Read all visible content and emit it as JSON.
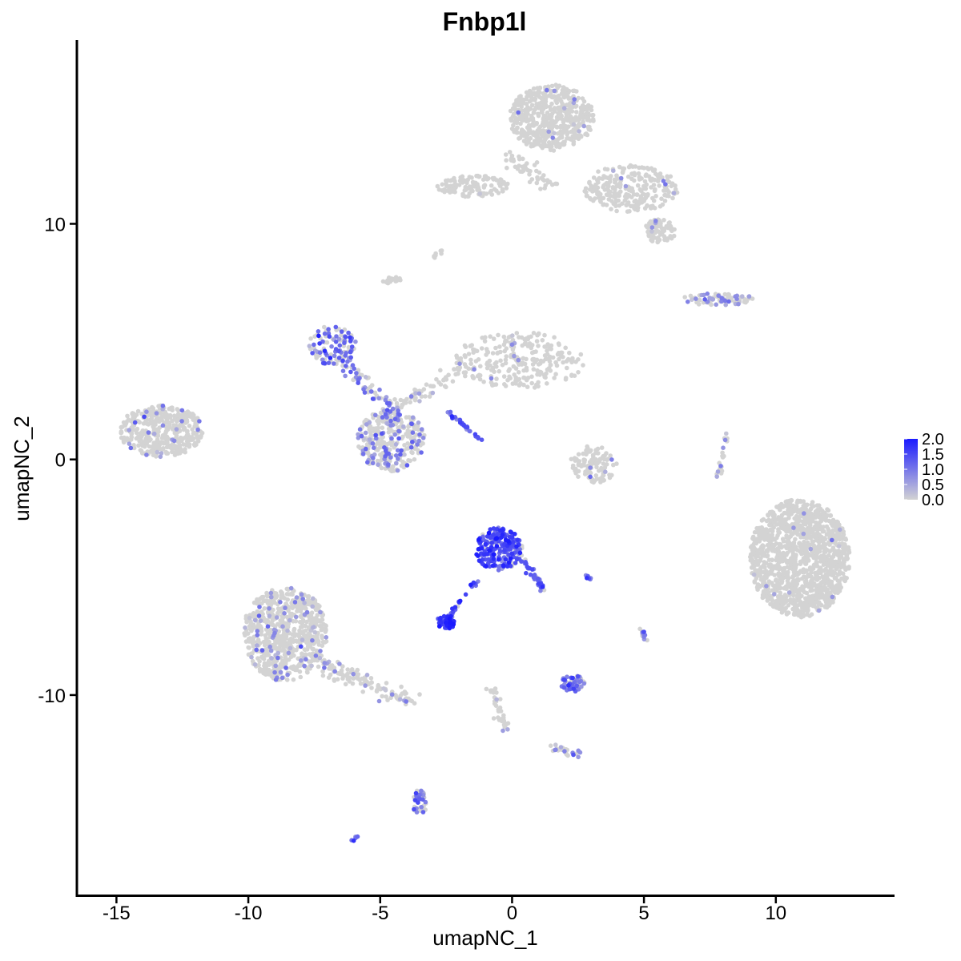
{
  "chart_data": {
    "type": "scatter",
    "title": "Fnbp1l",
    "xlabel": "umapNC_1",
    "ylabel": "umapNC_2",
    "xlim": [
      -16.5,
      14.5
    ],
    "ylim": [
      -18.5,
      17.8
    ],
    "x_ticks": [
      -15,
      -10,
      -5,
      0,
      5,
      10
    ],
    "y_ticks": [
      -10,
      0,
      10
    ],
    "x_tick_labels": [
      "-15",
      "-10",
      "-5",
      "0",
      "5",
      "10"
    ],
    "y_tick_labels": [
      "-10",
      "0",
      "10"
    ],
    "color_scale": {
      "low": "#d3d3d3",
      "high": "#1a1aff",
      "min": 0.0,
      "max": 2.0,
      "breaks": [
        2.0,
        1.5,
        1.0,
        0.5,
        0.0
      ],
      "break_labels": [
        "2.0",
        "1.5",
        "1.0",
        "0.5",
        "0.0"
      ]
    },
    "legend_position": "right",
    "grid": false,
    "clusters": [
      {
        "name": "top-right-cloud",
        "cx": 1.5,
        "cy": 14.5,
        "rx": 1.6,
        "ry": 1.4,
        "n": 520,
        "expr_frac": 0.02,
        "expr_mean": 0.6
      },
      {
        "name": "top-right-tail",
        "cx": 4.5,
        "cy": 11.5,
        "rx": 1.8,
        "ry": 1.0,
        "n": 260,
        "expr_frac": 0.02,
        "expr_mean": 0.6
      },
      {
        "name": "top-right-lobe",
        "cx": 5.6,
        "cy": 9.7,
        "rx": 0.6,
        "ry": 0.5,
        "n": 80,
        "expr_frac": 0.03,
        "expr_mean": 0.6
      },
      {
        "name": "top-left-strand",
        "cx": -1.5,
        "cy": 11.6,
        "rx": 1.4,
        "ry": 0.45,
        "n": 120,
        "expr_frac": 0.02,
        "expr_mean": 0.5
      },
      {
        "name": "left-cluster",
        "cx": -13.3,
        "cy": 1.2,
        "rx": 1.6,
        "ry": 1.1,
        "n": 400,
        "expr_frac": 0.06,
        "expr_mean": 0.7
      },
      {
        "name": "central-blob",
        "cx": -4.6,
        "cy": 0.8,
        "rx": 1.3,
        "ry": 1.3,
        "n": 330,
        "expr_frac": 0.28,
        "expr_mean": 0.8
      },
      {
        "name": "upper-left-arm",
        "cx": -6.8,
        "cy": 4.8,
        "rx": 0.9,
        "ry": 0.9,
        "n": 110,
        "expr_frac": 0.55,
        "expr_mean": 1.0
      },
      {
        "name": "upper-mid-cloud",
        "cx": 0.3,
        "cy": 4.2,
        "rx": 2.5,
        "ry": 1.2,
        "n": 260,
        "expr_frac": 0.04,
        "expr_mean": 0.6
      },
      {
        "name": "right-arc",
        "cx": 7.8,
        "cy": 6.8,
        "rx": 1.4,
        "ry": 0.25,
        "n": 80,
        "expr_frac": 0.35,
        "expr_mean": 0.8
      },
      {
        "name": "mid-crescent",
        "cx": 3.1,
        "cy": -0.2,
        "rx": 0.9,
        "ry": 0.8,
        "n": 100,
        "expr_frac": 0.04,
        "expr_mean": 0.6
      },
      {
        "name": "big-right-cluster",
        "cx": 10.9,
        "cy": -4.2,
        "rx": 1.9,
        "ry": 2.5,
        "n": 1300,
        "expr_frac": 0.01,
        "expr_mean": 0.6
      },
      {
        "name": "center-hot-cluster",
        "cx": -0.5,
        "cy": -3.8,
        "rx": 0.9,
        "ry": 0.9,
        "n": 210,
        "expr_frac": 0.9,
        "expr_mean": 1.4
      },
      {
        "name": "hot-small-cluster",
        "cx": -2.5,
        "cy": -6.9,
        "rx": 0.35,
        "ry": 0.3,
        "n": 55,
        "expr_frac": 0.95,
        "expr_mean": 1.5
      },
      {
        "name": "bottom-left-cluster",
        "cx": -8.6,
        "cy": -7.4,
        "rx": 1.6,
        "ry": 2.0,
        "n": 700,
        "expr_frac": 0.1,
        "expr_mean": 0.7
      },
      {
        "name": "bottom-right-small",
        "cx": 2.3,
        "cy": -9.5,
        "rx": 0.45,
        "ry": 0.35,
        "n": 60,
        "expr_frac": 0.6,
        "expr_mean": 1.0
      },
      {
        "name": "bottom-strand",
        "cx": -3.5,
        "cy": -14.6,
        "rx": 0.25,
        "ry": 0.6,
        "n": 40,
        "expr_frac": 0.5,
        "expr_mean": 0.9
      }
    ],
    "strands": [
      {
        "name": "blob-to-arm",
        "from": [
          -6.4,
          4.0
        ],
        "to": [
          -4.2,
          1.8
        ],
        "n": 60,
        "width": 0.3,
        "expr_frac": 0.55,
        "expr_mean": 1.0
      },
      {
        "name": "arm-to-mid",
        "from": [
          -4.4,
          2.2
        ],
        "to": [
          -1.8,
          3.8
        ],
        "n": 60,
        "width": 0.3,
        "expr_frac": 0.08,
        "expr_mean": 0.6
      },
      {
        "name": "diag-hot",
        "from": [
          -2.4,
          2.0
        ],
        "to": [
          -1.2,
          0.8
        ],
        "n": 30,
        "width": 0.08,
        "expr_frac": 0.85,
        "expr_mean": 1.2
      },
      {
        "name": "hot-to-tail",
        "from": [
          0.3,
          -4.0
        ],
        "to": [
          1.2,
          -5.6
        ],
        "n": 40,
        "width": 0.15,
        "expr_frac": 0.8,
        "expr_mean": 1.2
      },
      {
        "name": "hot-to-small",
        "from": [
          -1.2,
          -5.0
        ],
        "to": [
          -2.5,
          -6.8
        ],
        "n": 25,
        "width": 0.1,
        "expr_frac": 0.8,
        "expr_mean": 1.3
      },
      {
        "name": "bl-tail",
        "from": [
          -7.5,
          -8.6
        ],
        "to": [
          -3.8,
          -10.2
        ],
        "n": 120,
        "width": 0.35,
        "expr_frac": 0.12,
        "expr_mean": 0.7
      },
      {
        "name": "center-down",
        "from": [
          -0.8,
          -9.5
        ],
        "to": [
          -0.2,
          -11.5
        ],
        "n": 35,
        "width": 0.2,
        "expr_frac": 0.05,
        "expr_mean": 0.6
      },
      {
        "name": "bottom-right-strand",
        "from": [
          1.6,
          -12.3
        ],
        "to": [
          2.5,
          -12.5
        ],
        "n": 25,
        "width": 0.15,
        "expr_frac": 0.3,
        "expr_mean": 0.8
      },
      {
        "name": "top-diag",
        "from": [
          -0.2,
          13.0
        ],
        "to": [
          1.5,
          11.5
        ],
        "n": 50,
        "width": 0.35,
        "expr_frac": 0.02,
        "expr_mean": 0.5
      },
      {
        "name": "thin-right",
        "from": [
          8.2,
          1.2
        ],
        "to": [
          7.8,
          -0.8
        ],
        "n": 20,
        "width": 0.1,
        "expr_frac": 0.2,
        "expr_mean": 0.7
      },
      {
        "name": "far-top-left",
        "from": [
          -4.8,
          7.5
        ],
        "to": [
          -4.3,
          7.7
        ],
        "n": 18,
        "width": 0.15,
        "expr_frac": 0.0,
        "expr_mean": 0.0
      },
      {
        "name": "tiny-top",
        "from": [
          -3.0,
          8.6
        ],
        "to": [
          -2.6,
          8.9
        ],
        "n": 10,
        "width": 0.1,
        "expr_frac": 0.0,
        "expr_mean": 0.0
      },
      {
        "name": "bottom-dot",
        "from": [
          -6.1,
          -16.2
        ],
        "to": [
          -5.9,
          -16.0
        ],
        "n": 6,
        "width": 0.05,
        "expr_frac": 1.0,
        "expr_mean": 1.2
      },
      {
        "name": "small-right-pair",
        "from": [
          4.9,
          -7.2
        ],
        "to": [
          5.1,
          -7.7
        ],
        "n": 14,
        "width": 0.1,
        "expr_frac": 0.5,
        "expr_mean": 0.9
      },
      {
        "name": "dot-near-hot",
        "from": [
          2.8,
          -4.9
        ],
        "to": [
          3.0,
          -5.1
        ],
        "n": 8,
        "width": 0.08,
        "expr_frac": 0.7,
        "expr_mean": 1.0
      }
    ]
  }
}
